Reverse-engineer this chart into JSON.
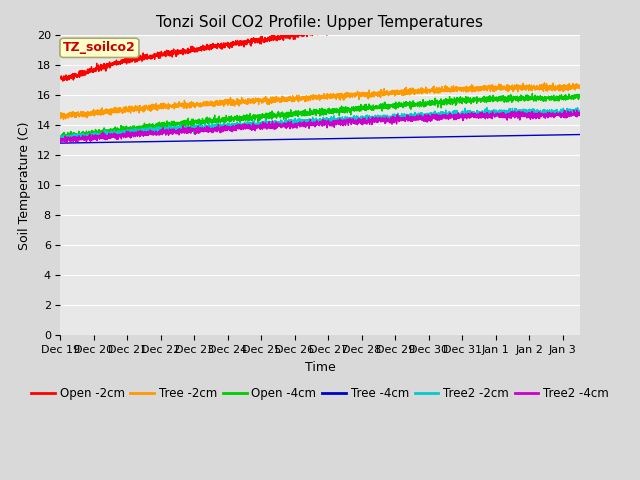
{
  "title": "Tonzi Soil CO2 Profile: Upper Temperatures",
  "xlabel": "Time",
  "ylabel": "Soil Temperature (C)",
  "ylim": [
    0,
    20
  ],
  "x_tick_labels": [
    "Dec 19",
    "Dec 20",
    "Dec 21",
    "Dec 22",
    "Dec 23",
    "Dec 24",
    "Dec 25",
    "Dec 26",
    "Dec 27",
    "Dec 28",
    "Dec 29",
    "Dec 30",
    "Dec 31",
    "Jan 1",
    "Jan 2",
    "Jan 3"
  ],
  "x_tick_positions": [
    0,
    1,
    2,
    3,
    4,
    5,
    6,
    7,
    8,
    9,
    10,
    11,
    12,
    13,
    14,
    15
  ],
  "series": [
    {
      "name": "Open -2cm",
      "color": "#ff0000",
      "base": 9.0,
      "amp_start": 7.0,
      "amp_end": 8.5,
      "phase_shift": 0.25,
      "trend": 0.2,
      "smooth": 1.0,
      "asym": 0.6
    },
    {
      "name": "Tree -2cm",
      "color": "#ff9900",
      "base": 10.5,
      "amp_start": 3.5,
      "amp_end": 4.5,
      "phase_shift": 0.3,
      "trend": 0.05,
      "smooth": 1.5,
      "asym": 0.5
    },
    {
      "name": "Open -4cm",
      "color": "#00cc00",
      "base": 8.5,
      "amp_start": 4.0,
      "amp_end": 5.0,
      "phase_shift": 0.35,
      "trend": 0.1,
      "smooth": 1.5,
      "asym": 0.5
    },
    {
      "name": "Tree -4cm",
      "color": "#0000cc",
      "base": 11.2,
      "amp_start": 1.3,
      "amp_end": 1.5,
      "phase_shift": 0.6,
      "trend": 0.02,
      "smooth": 3.0,
      "asym": 0.3
    },
    {
      "name": "Tree2 -2cm",
      "color": "#00cccc",
      "base": 9.0,
      "amp_start": 3.5,
      "amp_end": 4.0,
      "phase_shift": 0.38,
      "trend": 0.08,
      "smooth": 1.5,
      "asym": 0.5
    },
    {
      "name": "Tree2 -4cm",
      "color": "#cc00cc",
      "base": 9.2,
      "amp_start": 3.2,
      "amp_end": 3.8,
      "phase_shift": 0.4,
      "trend": 0.07,
      "smooth": 1.5,
      "asym": 0.5
    }
  ],
  "annotation_text": "TZ_soilco2",
  "annotation_color": "#cc0000",
  "annotation_bg": "#ffffcc",
  "bg_color": "#d9d9d9",
  "plot_bg": "#e8e8e8",
  "title_fontsize": 11,
  "axis_fontsize": 9,
  "tick_fontsize": 8,
  "legend_fontsize": 8.5
}
